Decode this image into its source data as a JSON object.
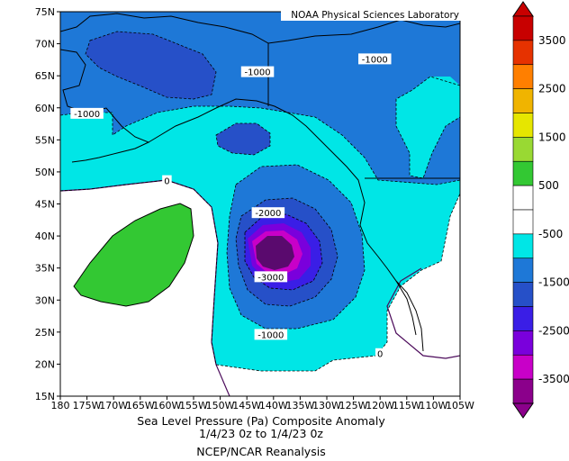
{
  "credit": "NOAA Physical Sciences Laboratory",
  "caption": {
    "line1": "Sea Level Pressure (Pa)    Composite Anomaly",
    "line2": "1/4/23 0z  to 1/4/23 0z",
    "line3": "NCEP/NCAR Reanalysis"
  },
  "axes": {
    "lat_labels": [
      "75N",
      "70N",
      "65N",
      "60N",
      "55N",
      "50N",
      "45N",
      "40N",
      "35N",
      "30N",
      "25N",
      "20N",
      "15N"
    ],
    "lon_labels": [
      "180",
      "175W",
      "170W",
      "165W",
      "160W",
      "155W",
      "150W",
      "145W",
      "140W",
      "135W",
      "130W",
      "125W",
      "120W",
      "115W",
      "110W",
      "105W"
    ],
    "lat_range": [
      15,
      75
    ],
    "lon_range": [
      -180,
      -105
    ]
  },
  "contour_labels": [
    {
      "text": "-1000",
      "lon": -143,
      "lat": 65.5
    },
    {
      "text": "-1000",
      "lon": -121,
      "lat": 67.5
    },
    {
      "text": "-1000",
      "lon": -175,
      "lat": 59
    },
    {
      "text": "0",
      "lon": -160,
      "lat": 48.5
    },
    {
      "text": "-2000",
      "lon": -141,
      "lat": 43.5
    },
    {
      "text": "-3000",
      "lon": -140.5,
      "lat": 33.5
    },
    {
      "text": "-1000",
      "lon": -140.5,
      "lat": 24.5
    },
    {
      "text": "0",
      "lon": -120,
      "lat": 21.5
    }
  ],
  "colorbar": {
    "levels": [
      "3500",
      "2500",
      "1500",
      "500",
      "-500",
      "-1500",
      "-2500",
      "-3500"
    ],
    "colors": [
      "#8b008b",
      "#c800c8",
      "#7a00dc",
      "#3a1ee6",
      "#2650c8",
      "#1e78d7",
      "#00e6e6",
      "#ffffff",
      "#ffffff",
      "#33c833",
      "#99d933",
      "#e6e600",
      "#f0b400",
      "#ff7f00",
      "#e63200",
      "#c80000"
    ],
    "bar_labels": [
      "3500",
      "2500",
      "1500",
      "500",
      "-500",
      "-1500",
      "-2500",
      "-3500"
    ]
  },
  "colors": {
    "neg_500_1500_cyan": "#00e6e6",
    "neg_1500_2500_lightblue": "#1e78d7",
    "neg_2500_blue": "#2650c8",
    "neg_deep_blue": "#3a1ee6",
    "neg_violet": "#7a00dc",
    "neg_magenta": "#c800c8",
    "neg_darkpurple": "#5a0a6e",
    "pos_green": "#33c833",
    "land_line": "#000000",
    "zero_contour": "#4b0a5a"
  }
}
